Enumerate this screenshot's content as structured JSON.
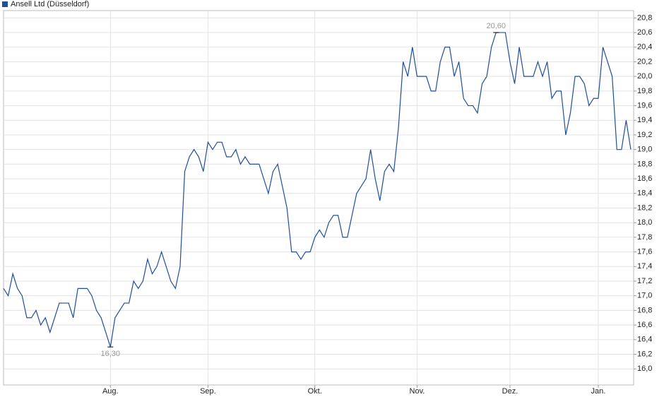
{
  "chart_data": {
    "type": "line",
    "series": [
      {
        "name": "Ansell Ltd (Düsseldorf)",
        "color": "#1f4e9c",
        "values": [
          17.1,
          17.0,
          17.3,
          17.1,
          17.0,
          16.7,
          16.7,
          16.8,
          16.6,
          16.7,
          16.5,
          16.7,
          16.9,
          16.9,
          16.9,
          16.7,
          17.1,
          17.1,
          17.1,
          17.0,
          16.8,
          16.7,
          16.5,
          16.3,
          16.7,
          16.8,
          16.9,
          16.9,
          17.2,
          17.1,
          17.2,
          17.5,
          17.3,
          17.4,
          17.6,
          17.4,
          17.2,
          17.1,
          17.4,
          18.7,
          18.9,
          19.0,
          18.9,
          18.7,
          19.1,
          19.0,
          19.1,
          19.1,
          18.9,
          18.9,
          19.0,
          18.8,
          18.9,
          18.8,
          18.8,
          18.8,
          18.6,
          18.4,
          18.7,
          18.8,
          18.5,
          18.2,
          17.6,
          17.6,
          17.5,
          17.6,
          17.6,
          17.8,
          17.9,
          17.8,
          18.0,
          18.1,
          18.1,
          17.8,
          17.8,
          18.1,
          18.4,
          18.5,
          18.6,
          19.0,
          18.6,
          18.3,
          18.7,
          18.8,
          18.7,
          19.3,
          20.2,
          20.0,
          20.4,
          20.0,
          20.0,
          20.0,
          19.8,
          19.8,
          20.2,
          20.4,
          20.4,
          20.0,
          20.2,
          19.7,
          19.6,
          19.6,
          19.5,
          19.9,
          20.0,
          20.4,
          20.6,
          20.6,
          20.6,
          20.2,
          19.9,
          20.4,
          20.0,
          20.0,
          20.0,
          20.2,
          20.0,
          20.2,
          19.7,
          19.8,
          19.8,
          19.2,
          19.5,
          20.0,
          20.0,
          19.9,
          19.6,
          19.7,
          19.7,
          20.4,
          20.2,
          20.0,
          19.0,
          19.0,
          19.4,
          19.0
        ],
        "value_labels": [
          null,
          null,
          null,
          null,
          null,
          null,
          null,
          null,
          null,
          null,
          null,
          null,
          null,
          null,
          null,
          null,
          null,
          null,
          null,
          null,
          null,
          null,
          null,
          "16,30",
          null,
          null,
          null,
          null,
          null,
          null,
          null,
          null,
          null,
          null,
          null,
          null,
          null,
          null,
          null,
          null,
          null,
          null,
          null,
          null,
          null,
          null,
          null,
          null,
          null,
          null,
          null,
          null,
          null,
          null,
          null,
          null,
          null,
          null,
          null,
          null,
          null,
          null,
          null,
          null,
          null,
          null,
          null,
          null,
          null,
          null,
          null,
          null,
          null,
          null,
          null,
          null,
          null,
          null,
          null,
          null,
          null,
          null,
          null,
          null,
          null,
          null,
          null,
          null,
          null,
          null,
          null,
          null,
          null,
          null,
          null,
          null,
          null,
          null,
          null,
          null,
          null,
          null,
          null,
          null,
          null,
          null,
          "20,60",
          null,
          null,
          null,
          null,
          null,
          null,
          null,
          null,
          null,
          null,
          null,
          null,
          null,
          null,
          null,
          null,
          null,
          null,
          null,
          null,
          null,
          null,
          null,
          null,
          null,
          null,
          null,
          null,
          null
        ]
      }
    ],
    "categories": [
      null,
      null,
      null,
      null,
      null,
      null,
      null,
      null,
      null,
      null,
      null,
      null,
      null,
      null,
      null,
      null,
      null,
      null,
      null,
      null,
      null,
      null,
      null,
      "Aug.",
      null,
      null,
      null,
      null,
      null,
      null,
      null,
      null,
      null,
      null,
      null,
      null,
      null,
      null,
      null,
      null,
      null,
      null,
      null,
      null,
      "Sep.",
      null,
      null,
      null,
      null,
      null,
      null,
      null,
      null,
      null,
      null,
      null,
      null,
      null,
      null,
      null,
      null,
      null,
      null,
      null,
      null,
      null,
      null,
      "Okt.",
      null,
      null,
      null,
      null,
      null,
      null,
      null,
      null,
      null,
      null,
      null,
      null,
      null,
      null,
      null,
      null,
      null,
      null,
      null,
      null,
      null,
      "Nov.",
      null,
      null,
      null,
      null,
      null,
      null,
      null,
      null,
      null,
      null,
      null,
      null,
      null,
      null,
      null,
      null,
      null,
      null,
      null,
      "Dez.",
      null,
      null,
      null,
      null,
      null,
      null,
      null,
      null,
      null,
      null,
      null,
      null,
      null,
      null,
      null,
      null,
      null,
      null,
      "Jan.",
      null,
      null,
      null,
      null,
      null,
      null,
      null
    ],
    "ylim": [
      15.78,
      20.9
    ],
    "yticks": [
      {
        "value": 16.0,
        "label": "16,0"
      },
      {
        "value": 16.2,
        "label": "16,2"
      },
      {
        "value": 16.4,
        "label": "16,4"
      },
      {
        "value": 16.6,
        "label": "16,6"
      },
      {
        "value": 16.8,
        "label": "16,8"
      },
      {
        "value": 17.0,
        "label": "17,0"
      },
      {
        "value": 17.2,
        "label": "17,2"
      },
      {
        "value": 17.4,
        "label": "17,4"
      },
      {
        "value": 17.6,
        "label": "17,6"
      },
      {
        "value": 17.8,
        "label": "17,8"
      },
      {
        "value": 18.0,
        "label": "18,0"
      },
      {
        "value": 18.2,
        "label": "18,2"
      },
      {
        "value": 18.4,
        "label": "18,4"
      },
      {
        "value": 18.6,
        "label": "18,6"
      },
      {
        "value": 18.8,
        "label": "18,8"
      },
      {
        "value": 19.0,
        "label": "19,0"
      },
      {
        "value": 19.2,
        "label": "19,2"
      },
      {
        "value": 19.4,
        "label": "19,4"
      },
      {
        "value": 19.6,
        "label": "19,6"
      },
      {
        "value": 19.8,
        "label": "19,8"
      },
      {
        "value": 20.0,
        "label": "20,0"
      },
      {
        "value": 20.2,
        "label": "20,2"
      },
      {
        "value": 20.4,
        "label": "20,4"
      },
      {
        "value": 20.6,
        "label": "20,6"
      },
      {
        "value": 20.8,
        "label": "20,8"
      }
    ],
    "grid": true
  }
}
